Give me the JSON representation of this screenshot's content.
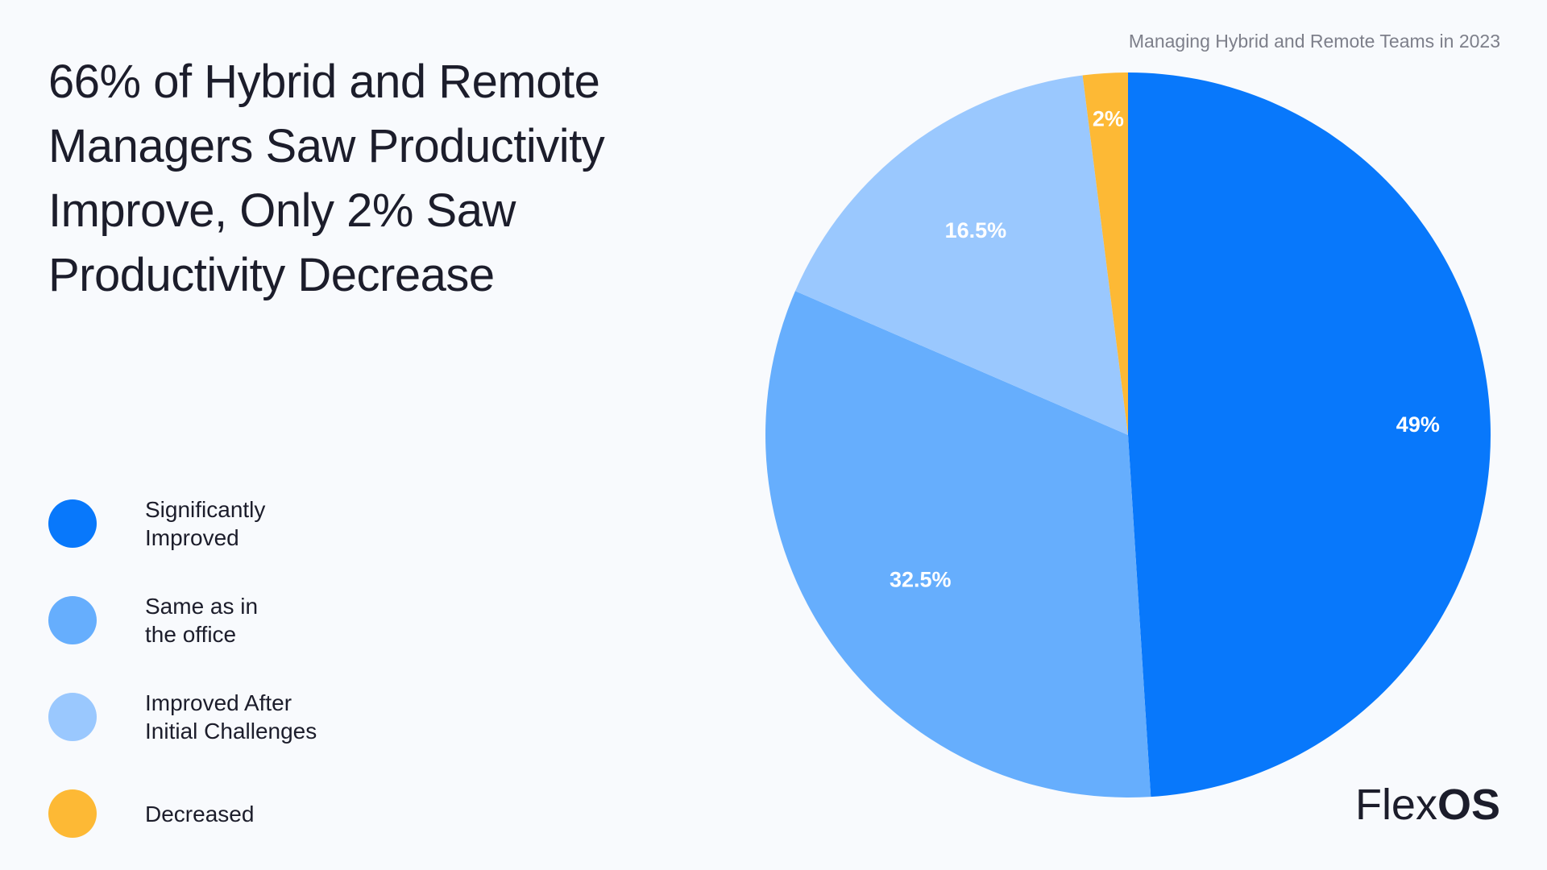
{
  "header": {
    "subtitle": "Managing Hybrid and Remote Teams in 2023",
    "title": "66% of Hybrid and Remote Managers Saw Productivity Improve, Only 2% Saw Productivity Decrease"
  },
  "brand": {
    "light": "Flex",
    "bold": "OS"
  },
  "chart_data": {
    "type": "pie",
    "title": "66% of Hybrid and Remote Managers Saw Productivity Improve, Only 2% Saw Productivity Decrease",
    "subtitle": "Managing Hybrid and Remote Teams in 2023",
    "start": "12 o'clock, clockwise",
    "slices": [
      {
        "label": "Significantly Improved",
        "value": 49,
        "display": "49%",
        "color": "#0878fb"
      },
      {
        "label": "Same as in the office",
        "value": 32.5,
        "display": "32.5%",
        "color": "#66aefd"
      },
      {
        "label": "Improved After Initial Challenges",
        "value": 16.5,
        "display": "16.5%",
        "color": "#9ac8fe"
      },
      {
        "label": "Decreased",
        "value": 2,
        "display": "2%",
        "color": "#fdb935"
      }
    ]
  },
  "legend": [
    {
      "line1": "Significantly",
      "line2": "Improved",
      "color": "#0878fb"
    },
    {
      "line1": "Same as in",
      "line2": "the office",
      "color": "#66aefd"
    },
    {
      "line1": "Improved After",
      "line2": "Initial Challenges",
      "color": "#9ac8fe"
    },
    {
      "line1": "Decreased",
      "line2": "",
      "color": "#fdb935"
    }
  ]
}
